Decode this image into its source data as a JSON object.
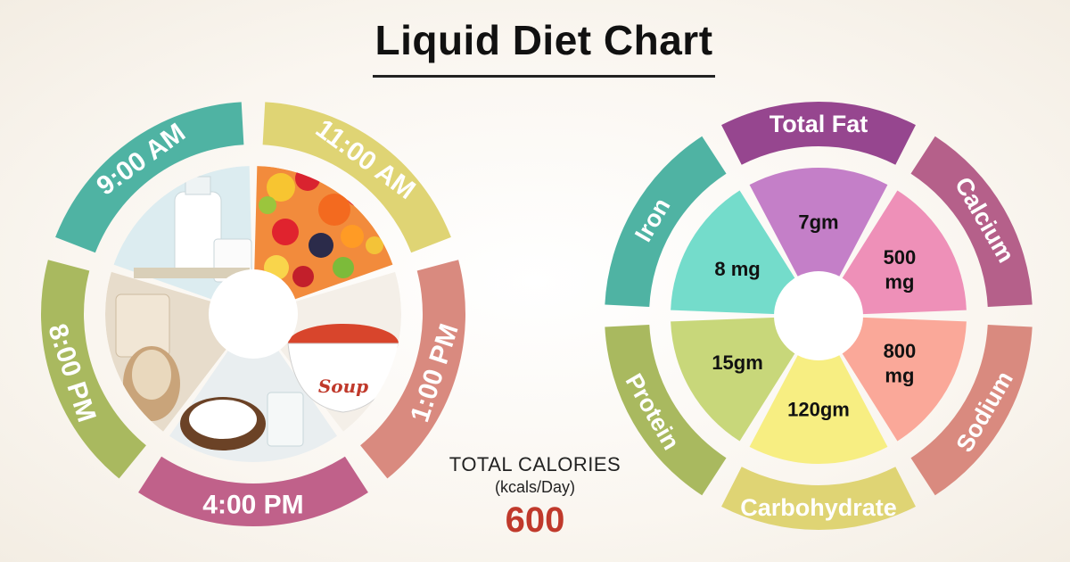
{
  "title": "Liquid Diet Chart",
  "colors": {
    "teal": "#4fb3a3",
    "yellow": "#dfd474",
    "salmon": "#d98a7f",
    "magenta": "#c0618a",
    "olive": "#a9b95f",
    "purple": "#96468f",
    "rose": "#b5608a",
    "calories_red": "#c0392b"
  },
  "schedule": {
    "slots": [
      {
        "time": "9:00 AM",
        "food": "milk",
        "color": "#4fb3a3"
      },
      {
        "time": "11:00 AM",
        "food": "fruit juice",
        "color": "#dfd474"
      },
      {
        "time": "1:00 PM",
        "food": "soup",
        "color": "#d98a7f"
      },
      {
        "time": "4:00 PM",
        "food": "coconut water",
        "color": "#c0618a"
      },
      {
        "time": "8:00 PM",
        "food": "protein shake",
        "color": "#a9b95f"
      }
    ],
    "soup_text": "Soup"
  },
  "calories": {
    "label": "TOTAL CALORIES",
    "unit": "(kcals/Day)",
    "value": "600"
  },
  "chart_data": {
    "type": "pie",
    "title": "Liquid Diet Chart",
    "categories": [
      "Total Fat",
      "Calcium",
      "Sodium",
      "Carbohydrate",
      "Protein",
      "Iron"
    ],
    "value_labels": [
      "7gm",
      "500 mg",
      "800 mg",
      "120gm",
      "15gm",
      "8 mg"
    ],
    "values": [
      7,
      500,
      800,
      120,
      15,
      8
    ],
    "units": [
      "gm",
      "mg",
      "mg",
      "gm",
      "gm",
      "mg"
    ],
    "ring_colors": [
      "#96468f",
      "#b5608a",
      "#d98a7f",
      "#dfd474",
      "#a9b95f",
      "#4fb3a3"
    ],
    "wedge_colors": [
      "#c47fc8",
      "#ee90b8",
      "#faa899",
      "#f7ee82",
      "#c8d77a",
      "#74dccb"
    ]
  }
}
